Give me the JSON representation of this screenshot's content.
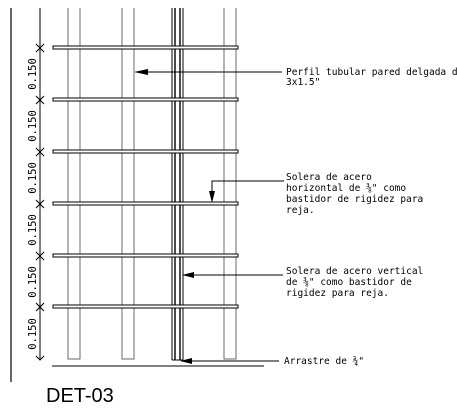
{
  "detail_title": "DET-03",
  "dimensions": {
    "spacing_label": "0.150",
    "count": 6
  },
  "annotations": {
    "perfil": {
      "line1": "Perfil tubular pared delgada de",
      "line2": "3x1.5\""
    },
    "solera_horizontal": {
      "line1": "Solera de acero",
      "line2": "horizontal de ⅜\" como",
      "line3": "bastidor de rigidez para",
      "line4": "reja."
    },
    "solera_vertical": {
      "line1": "Solera de acero vertical",
      "line2": "de ⅜\" como bastidor de",
      "line3": "rigidez para reja."
    },
    "arrastre": {
      "line1": "Arrastre de ¾\""
    }
  }
}
